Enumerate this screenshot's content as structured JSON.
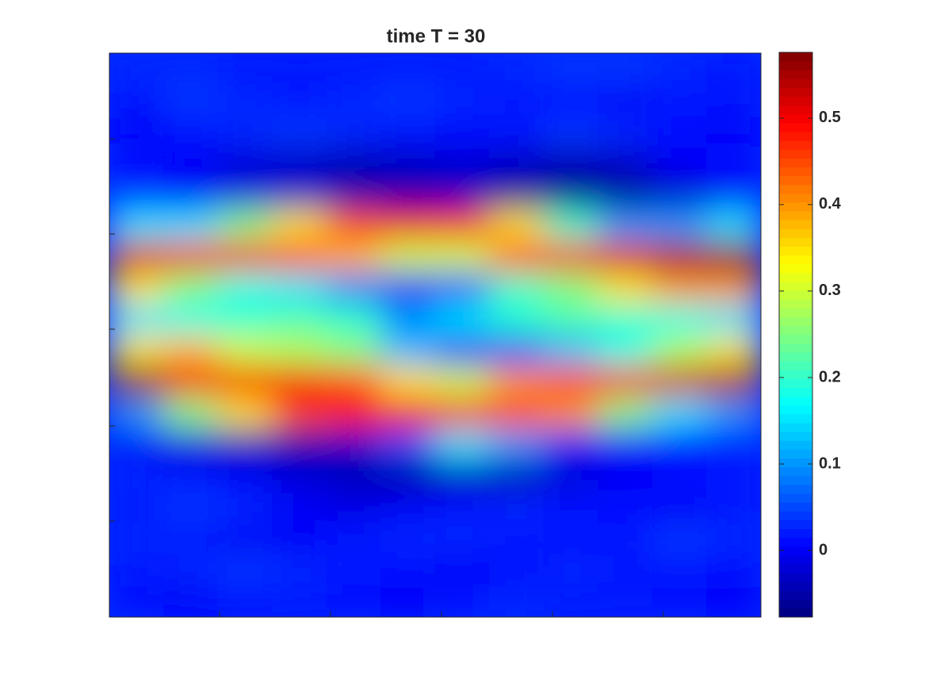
{
  "chart_data": {
    "type": "heatmap",
    "title": "time T = 30",
    "colormap": "jet",
    "clim": [
      -0.077,
      0.576
    ],
    "colorbar_ticks": [
      0,
      0.1,
      0.2,
      0.3,
      0.4,
      0.5
    ],
    "z": [
      [
        0.03,
        0.03,
        0.02,
        0.02,
        0.02,
        0.02,
        0.02,
        0.03,
        0.04,
        0.04,
        0.03,
        0.02
      ],
      [
        0.02,
        0.04,
        0.03,
        0.02,
        0.03,
        0.04,
        0.03,
        0.02,
        0.01,
        0,
        0.02,
        0.02
      ],
      [
        0,
        0.02,
        0.03,
        0.04,
        0.03,
        0.02,
        0.01,
        0.02,
        0.04,
        0.03,
        0.01,
        0
      ],
      [
        0.01,
        0,
        -0.02,
        -0.03,
        -0.04,
        -0.03,
        -0.02,
        -0.03,
        -0.04,
        -0.03,
        0,
        0.01
      ],
      [
        0.03,
        0,
        -0.02,
        -0.03,
        -0.05,
        -0.05,
        -0.04,
        -0.06,
        -0.07,
        -0.06,
        -0.03,
        0
      ],
      [
        0.15,
        0.15,
        0.25,
        0.35,
        0.45,
        0.5,
        0.48,
        0.35,
        0.2,
        0.1,
        0.1,
        0.15
      ],
      [
        0.52,
        0.5,
        0.5,
        0.45,
        0.38,
        0.3,
        0.3,
        0.45,
        0.5,
        0.52,
        0.55,
        0.57
      ],
      [
        0.35,
        0.25,
        0.18,
        0.15,
        0.08,
        0,
        0.05,
        0.2,
        0.25,
        0.35,
        0.4,
        0.4
      ],
      [
        0.15,
        0.18,
        0.2,
        0.22,
        0.2,
        0.1,
        0.15,
        0.2,
        0.22,
        0.2,
        0.18,
        0.15
      ],
      [
        0.35,
        0.38,
        0.3,
        0.28,
        0.25,
        0.12,
        0,
        0.05,
        0.12,
        0.18,
        0.28,
        0.35
      ],
      [
        0.57,
        0.5,
        0.5,
        0.5,
        0.45,
        0.35,
        0.3,
        0.4,
        0.45,
        0.5,
        0.52,
        0.55
      ],
      [
        0.1,
        0.25,
        0.35,
        0.45,
        0.48,
        0.5,
        0.5,
        0.45,
        0.4,
        0.25,
        0.15,
        0.1
      ],
      [
        0,
        -0.02,
        -0.04,
        -0.05,
        -0.03,
        0.05,
        0.15,
        0.1,
        0,
        0,
        0.01,
        0.02
      ],
      [
        0.03,
        0.02,
        0,
        -0.02,
        -0.04,
        -0.05,
        -0.04,
        -0.04,
        -0.02,
        0,
        0.01,
        0.02
      ],
      [
        0.02,
        0.04,
        0.03,
        0,
        -0.01,
        0,
        0.02,
        0.03,
        0.02,
        0.01,
        0,
        0.02
      ],
      [
        0.03,
        0.02,
        0,
        0,
        0.02,
        0.03,
        0.03,
        0.02,
        0.01,
        0.02,
        0.04,
        0.03
      ],
      [
        0.02,
        0.03,
        0.04,
        0.03,
        0.02,
        0.01,
        0,
        0.01,
        0.03,
        0.02,
        0.02,
        0.01
      ],
      [
        0.01,
        0,
        0.01,
        0.02,
        0.01,
        0,
        0.02,
        0.03,
        0.02,
        0.02,
        0.01,
        0
      ]
    ]
  }
}
